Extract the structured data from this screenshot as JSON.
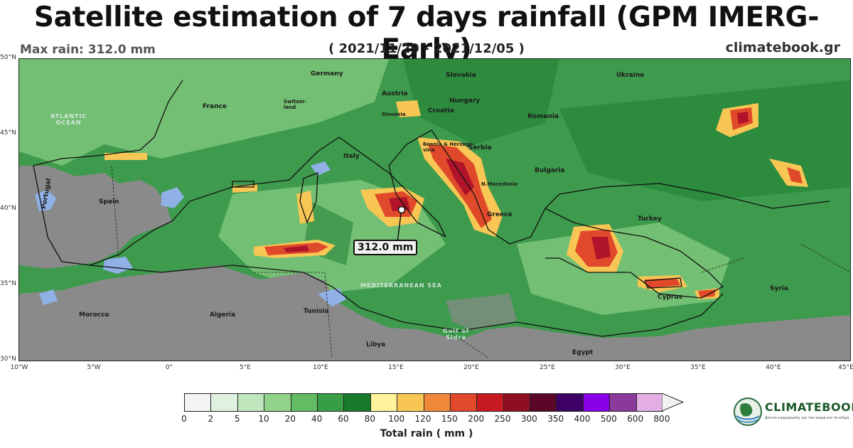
{
  "title": "Satellite estimation of 7 days rainfall (GPM IMERG-Early)",
  "max_rain": "Max rain: 312.0 mm",
  "date_range": "( 2021/11/29 - 2021/12/05 )",
  "site": "climatebook.gr",
  "max_label": "312.0 mm",
  "colorbar": {
    "title": "Total rain ( mm )",
    "ticks": [
      "0",
      "2",
      "5",
      "10",
      "20",
      "40",
      "60",
      "80",
      "100",
      "120",
      "150",
      "200",
      "250",
      "300",
      "350",
      "400",
      "500",
      "600",
      "800"
    ],
    "colors": [
      "#f4f4f4",
      "#dff2df",
      "#bfe6bd",
      "#92d38c",
      "#63bb63",
      "#389e45",
      "#197a2c",
      "#fff29a",
      "#f7c654",
      "#f0883a",
      "#e04a2a",
      "#c81a22",
      "#8e0e22",
      "#5c0628",
      "#3c0066",
      "#8a00e6",
      "#8a3a9a",
      "#e3aee3",
      "#f2f2f2"
    ]
  },
  "lat_labels": [
    "50°N",
    "45°N",
    "40°N",
    "35°N",
    "30°N"
  ],
  "lon_labels": [
    "10°W",
    "5°W",
    "0°",
    "5°E",
    "10°E",
    "15°E",
    "20°E",
    "25°E",
    "30°E",
    "35°E",
    "40°E",
    "45°E"
  ],
  "places": {
    "germany": "Germany",
    "slovakia": "Slovakia",
    "ukraine": "Ukraine",
    "austria": "Austria",
    "hungary": "Hungary",
    "france": "France",
    "switzerland": "Switzer-\nland",
    "slovenia": "Slovenia",
    "croatia": "Croatia",
    "romania": "Romania",
    "bosnia": "Bosnia & Herzego-\nvina",
    "serbia": "Serbia",
    "italy": "Italy",
    "bulgaria": "Bulgaria",
    "nmacedonia": "N.Macedonia",
    "spain": "Spain",
    "portugal": "Portugal",
    "greece": "Greece",
    "turkey": "Turkey",
    "cyprus": "Cyprus",
    "syria": "Syria",
    "morocco": "Morocco",
    "algeria": "Algeria",
    "tunisia": "Tunisia",
    "libya": "Libya",
    "egypt": "Egypt",
    "atlantic": "ATLANTIC\nOCEAN",
    "gulfsidra": "Gulf of\nSidra",
    "medsea": "MEDITERRANEAN SEA"
  },
  "logo": {
    "name": "CLIMATEBOOK",
    "tagline": "Δίκτυο ενημέρωσης για τον καιρό και το κλίμα"
  }
}
